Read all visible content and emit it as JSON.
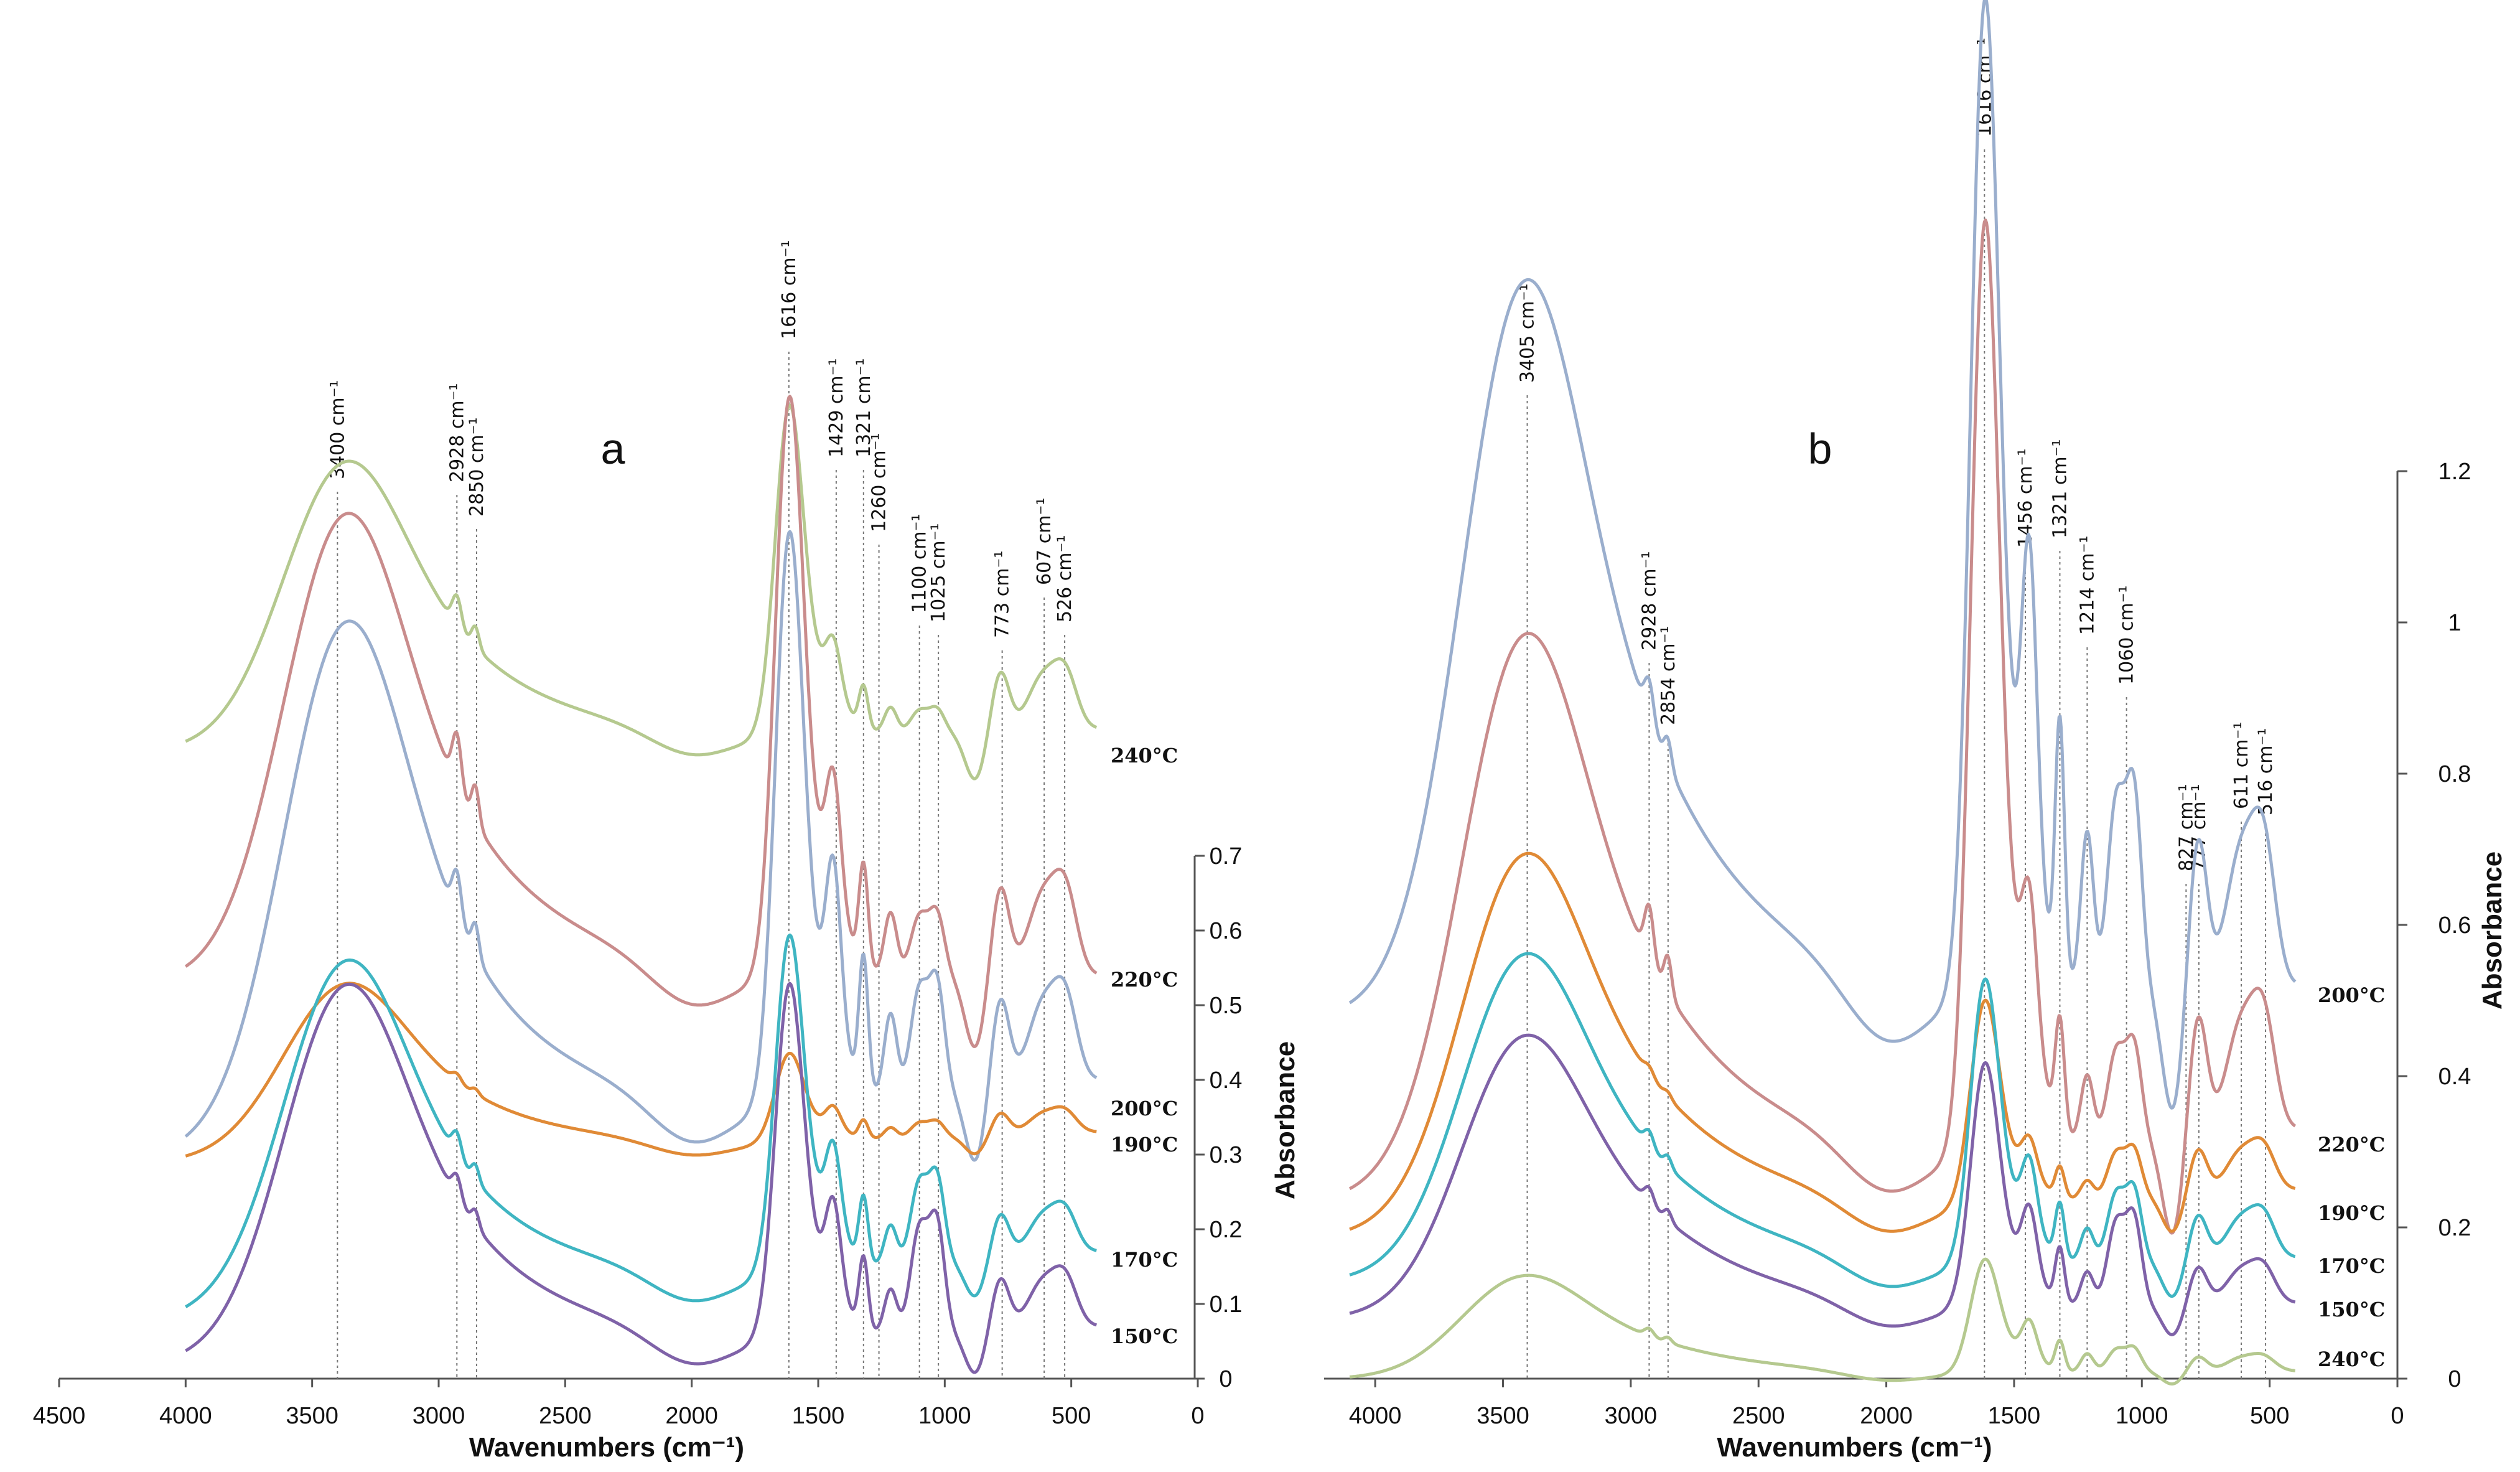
{
  "chart_data": [
    {
      "type": "line",
      "panel": "a",
      "xlabel": "Wavenumbers (cm⁻¹)",
      "ylabel": "Absorbance",
      "xlim": [
        4500,
        0
      ],
      "ylim": [
        0,
        0.7
      ],
      "x_ticks": [
        4500,
        4000,
        3500,
        3000,
        2500,
        2000,
        1500,
        1000,
        500,
        0
      ],
      "y_ticks": [
        0,
        0.1,
        0.2,
        0.3,
        0.4,
        0.5,
        0.6,
        0.7
      ],
      "peaks": [
        {
          "x": 3400,
          "label": "3400 cm⁻¹"
        },
        {
          "x": 2928,
          "label": "2928 cm⁻¹"
        },
        {
          "x": 2850,
          "label": "2850 cm⁻¹"
        },
        {
          "x": 1616,
          "label": "1616 cm⁻¹"
        },
        {
          "x": 1429,
          "label": "1429 cm⁻¹"
        },
        {
          "x": 1321,
          "label": "1321 cm⁻¹"
        },
        {
          "x": 1260,
          "label": "1260 cm⁻¹"
        },
        {
          "x": 1100,
          "label": "1100 cm⁻¹"
        },
        {
          "x": 1025,
          "label": "1025 cm⁻¹"
        },
        {
          "x": 773,
          "label": "773 cm⁻¹"
        },
        {
          "x": 607,
          "label": "607 cm⁻¹"
        },
        {
          "x": 526,
          "label": "526 cm⁻¹"
        }
      ],
      "series": [
        {
          "name": "240°C",
          "color": "#b5c98f",
          "baseline": 0.84,
          "amps": {
            "oh": 0.33,
            "ch": 0.04,
            "c1616": 0.41,
            "mid": 0.07,
            "c1100": 0.03,
            "low": 0.08
          },
          "tail": 0.87
        },
        {
          "name": "220°C",
          "color": "#c98c8c",
          "baseline": 0.53,
          "amps": {
            "oh": 0.54,
            "ch": 0.07,
            "c1616": 0.72,
            "mid": 0.17,
            "c1100": 0.08,
            "low": 0.12
          },
          "tail": 0.54
        },
        {
          "name": "200°C",
          "color": "#9aaecd",
          "baseline": 0.3,
          "amps": {
            "oh": 0.6,
            "ch": 0.06,
            "c1616": 0.71,
            "mid": 0.22,
            "c1100": 0.14,
            "low": 0.12
          },
          "tail": 0.4
        },
        {
          "name": "190°C",
          "color": "#e08a36",
          "baseline": 0.29,
          "amps": {
            "oh": 0.2,
            "ch": 0.01,
            "c1616": 0.11,
            "mid": 0.03,
            "c1100": 0.02,
            "low": 0.03
          },
          "tail": 0.33
        },
        {
          "name": "170°C",
          "color": "#3fb5c2",
          "baseline": 0.08,
          "amps": {
            "oh": 0.4,
            "ch": 0.03,
            "c1616": 0.42,
            "mid": 0.11,
            "c1100": 0.11,
            "low": 0.06
          },
          "tail": 0.17
        },
        {
          "name": "150°C",
          "color": "#7f62a8",
          "baseline": 0.02,
          "amps": {
            "oh": 0.43,
            "ch": 0.03,
            "c1616": 0.44,
            "mid": 0.12,
            "c1100": 0.14,
            "low": 0.07
          },
          "tail": 0.07
        }
      ]
    },
    {
      "type": "line",
      "panel": "b",
      "xlabel": "Wavenumbers (cm⁻¹)",
      "ylabel": "Absorbance",
      "xlim": [
        4200,
        0
      ],
      "ylim": [
        0,
        1.2
      ],
      "x_ticks": [
        4000,
        3500,
        3000,
        2500,
        2000,
        1500,
        1000,
        500,
        0
      ],
      "y_ticks": [
        0,
        0.2,
        0.4,
        0.6,
        0.8,
        1,
        1.2
      ],
      "peaks": [
        {
          "x": 3405,
          "label": "3405 cm⁻¹"
        },
        {
          "x": 2928,
          "label": "2928 cm⁻¹"
        },
        {
          "x": 2854,
          "label": "2854 cm⁻¹"
        },
        {
          "x": 1616,
          "label": "1616 cm⁻¹"
        },
        {
          "x": 1456,
          "label": "1456 cm⁻¹"
        },
        {
          "x": 1321,
          "label": "1321 cm⁻¹"
        },
        {
          "x": 1214,
          "label": "1214 cm⁻¹"
        },
        {
          "x": 1060,
          "label": "1060 cm⁻¹"
        },
        {
          "x": 827,
          "label": "827 cm⁻¹"
        },
        {
          "x": 777,
          "label": "777 cm⁻¹"
        },
        {
          "x": 611,
          "label": "611 cm⁻¹"
        },
        {
          "x": 516,
          "label": "516 cm⁻¹"
        }
      ],
      "series": [
        {
          "name": "200°C",
          "color": "#9aaecd",
          "baseline": 0.48,
          "amps": {
            "oh": 0.86,
            "ch": 0.05,
            "c1616": 1.22,
            "mid": 0.42,
            "c1100": 0.25,
            "low": 0.2
          },
          "tail": 0.52
        },
        {
          "name": "220°C",
          "color": "#c98c8c",
          "baseline": 0.24,
          "amps": {
            "oh": 0.65,
            "ch": 0.07,
            "c1616": 1.14,
            "mid": 0.18,
            "c1100": 0.12,
            "low": 0.16
          },
          "tail": 0.33
        },
        {
          "name": "190°C",
          "color": "#e08a36",
          "baseline": 0.19,
          "amps": {
            "oh": 0.44,
            "ch": 0.01,
            "c1616": 0.25,
            "mid": 0.05,
            "c1100": 0.06,
            "low": 0.06
          },
          "tail": 0.25
        },
        {
          "name": "170°C",
          "color": "#3fb5c2",
          "baseline": 0.13,
          "amps": {
            "oh": 0.38,
            "ch": 0.02,
            "c1616": 0.35,
            "mid": 0.09,
            "c1100": 0.09,
            "low": 0.06
          },
          "tail": 0.16
        },
        {
          "name": "150°C",
          "color": "#7f62a8",
          "baseline": 0.08,
          "amps": {
            "oh": 0.33,
            "ch": 0.02,
            "c1616": 0.3,
            "mid": 0.09,
            "c1100": 0.11,
            "low": 0.05
          },
          "tail": 0.1
        },
        {
          "name": "240°C",
          "color": "#b5c98f",
          "baseline": 0.0,
          "amps": {
            "oh": 0.12,
            "ch": 0.01,
            "c1616": 0.14,
            "mid": 0.05,
            "c1100": 0.03,
            "low": 0.02
          },
          "tail": 0.01
        }
      ]
    }
  ]
}
